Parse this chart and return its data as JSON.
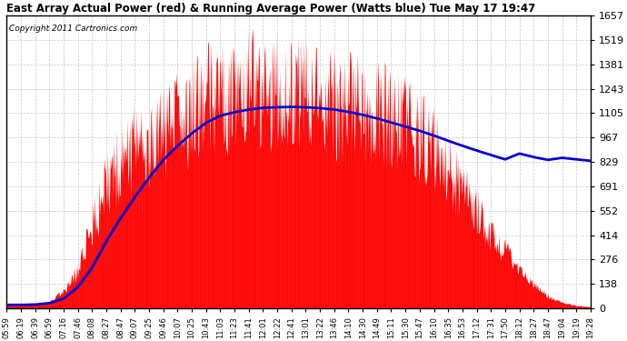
{
  "title": "East Array Actual Power (red) & Running Average Power (Watts blue) Tue May 17 19:47",
  "copyright": "Copyright 2011 Cartronics.com",
  "yticks": [
    0.0,
    138.1,
    276.2,
    414.3,
    552.4,
    690.6,
    828.7,
    966.8,
    1104.9,
    1243.0,
    1381.1,
    1519.2,
    1657.3
  ],
  "ymax": 1657.3,
  "bg_color": "#ffffff",
  "grid_color": "#aaaaaa",
  "bar_color": "#ff0000",
  "line_color": "#0000cc",
  "xtick_labels": [
    "05:59",
    "06:19",
    "06:39",
    "06:59",
    "07:16",
    "07:46",
    "08:08",
    "08:27",
    "08:47",
    "09:07",
    "09:25",
    "09:46",
    "10:07",
    "10:25",
    "10:43",
    "11:03",
    "11:23",
    "11:41",
    "12:01",
    "12:22",
    "12:41",
    "13:01",
    "13:22",
    "13:46",
    "14:10",
    "14:30",
    "14:49",
    "15:11",
    "15:30",
    "15:47",
    "16:10",
    "16:35",
    "16:53",
    "17:12",
    "17:31",
    "17:50",
    "18:12",
    "18:27",
    "18:47",
    "19:04",
    "19:19",
    "19:28"
  ],
  "envelope": [
    20,
    20,
    25,
    40,
    120,
    280,
    600,
    900,
    1050,
    1150,
    1200,
    1280,
    1350,
    1420,
    1500,
    1550,
    1580,
    1600,
    1620,
    1580,
    1560,
    1540,
    1520,
    1500,
    1480,
    1450,
    1420,
    1380,
    1320,
    1250,
    1150,
    1000,
    850,
    700,
    550,
    400,
    250,
    160,
    80,
    40,
    20,
    10
  ],
  "running_avg": [
    20,
    20,
    22,
    30,
    55,
    120,
    230,
    380,
    510,
    630,
    740,
    840,
    920,
    990,
    1050,
    1090,
    1110,
    1125,
    1135,
    1138,
    1140,
    1138,
    1133,
    1125,
    1112,
    1095,
    1075,
    1052,
    1028,
    1005,
    978,
    948,
    920,
    893,
    868,
    843,
    876,
    856,
    840,
    852,
    843,
    835
  ],
  "title_fontsize": 8.5,
  "copyright_fontsize": 6.5,
  "ytick_fontsize": 8,
  "xtick_fontsize": 6
}
